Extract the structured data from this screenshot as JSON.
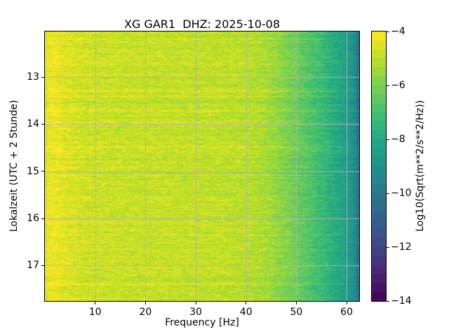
{
  "figure": {
    "title": "XG GAR1  DHZ: 2025-10-08",
    "background_color": "#ffffff"
  },
  "axes": {
    "x_label": "Frequency [Hz]",
    "y_label": "Lokalzeit (UTC + 2 Stunde)",
    "x_tick_labels": [
      "10",
      "20",
      "30",
      "40",
      "50",
      "60"
    ],
    "y_tick_labels": [
      "13",
      "14",
      "15",
      "16",
      "17"
    ]
  },
  "colorbar": {
    "label": "Log10(Sqrt(m**2/s**2/Hz))",
    "tick_labels": [
      "−4",
      "−6",
      "−8",
      "−10",
      "−12",
      "−14"
    ],
    "tick_values": [
      -4,
      -6,
      -8,
      -10,
      -12,
      -14
    ],
    "vmin": -14,
    "vmax": -4,
    "steps": 30,
    "outline_color": "#000000"
  },
  "chart_data": {
    "type": "heatmap",
    "subtype": "spectrogram",
    "title": "XG GAR1  DHZ: 2025-10-08",
    "xlabel": "Frequency [Hz]",
    "ylabel": "Lokalzeit (UTC + 2 Stunde)",
    "x_range_hz": [
      0,
      62.5
    ],
    "y_range_hours": [
      12.035,
      17.75
    ],
    "xticks": [
      10,
      20,
      30,
      40,
      50,
      60
    ],
    "yticks": [
      13,
      14,
      15,
      16,
      17
    ],
    "grid": true,
    "gridline_color": "rgba(178,178,178,0.9)",
    "colormap": "viridis",
    "colormap_stops": [
      "#440154",
      "#482475",
      "#414487",
      "#355f8d",
      "#2a788e",
      "#21918c",
      "#22a884",
      "#44bf70",
      "#7ad151",
      "#bddf26",
      "#fde725"
    ],
    "color_scale": {
      "vmin": -14,
      "vmax": -4,
      "unit": "Log10(Sqrt(m**2/s**2/Hz))"
    },
    "mean_spectrum": {
      "frequency_hz": [
        0,
        0.8,
        2,
        4,
        8,
        15,
        25,
        35,
        40,
        44,
        48,
        52,
        55,
        58,
        60,
        61.5,
        62.5
      ],
      "log10_sqrt_psd": [
        -4.6,
        -4.3,
        -4.25,
        -4.5,
        -4.75,
        -4.85,
        -4.9,
        -4.95,
        -5.05,
        -5.3,
        -5.9,
        -6.6,
        -7.2,
        -7.9,
        -8.4,
        -9.0,
        -10.5
      ]
    },
    "noise": {
      "cell_jitter": 0.32,
      "row_jitter": 0.16,
      "bright_row_prob": 0.05,
      "dark_row_prob": 0.05,
      "spike_prob": 0.02,
      "seed": 20251008
    }
  }
}
